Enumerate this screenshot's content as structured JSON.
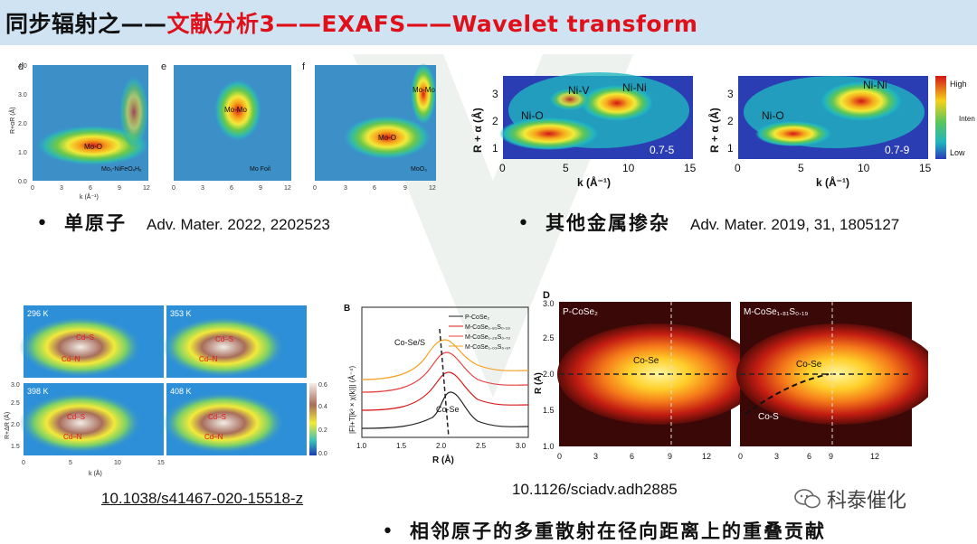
{
  "title": {
    "prefix": "同步辐射之——",
    "highlight": "文献分析3——EXAFS——Wavelet transform"
  },
  "panel_top_left": {
    "panels": [
      {
        "letter": "d",
        "label": "Mo-O",
        "note": "Mo₁-NiFeOₓHₓ"
      },
      {
        "letter": "e",
        "label": "Mo-Mo",
        "note": "Mo Foil"
      },
      {
        "letter": "f",
        "label_top": "Mo-Mo",
        "label_mid": "Mo-O",
        "note": "MoO₃"
      }
    ],
    "ylabel": "R+αR (Å)",
    "xlabel": "k (Å⁻¹)",
    "yticks": [
      "0.0",
      "1.0",
      "2.0",
      "3.0",
      "4.0"
    ],
    "xticks": [
      "0",
      "3",
      "6",
      "9",
      "12"
    ]
  },
  "panel_top_right": {
    "ylabel": "R + α (Å)",
    "xlabel": "k (Å⁻¹)",
    "xticks": [
      "0",
      "5",
      "10",
      "15"
    ],
    "yticks": [
      "1",
      "2",
      "3"
    ],
    "left": {
      "labels": [
        "Ni-V",
        "Ni-Ni",
        "Ni-O"
      ],
      "tag": "0.7-5"
    },
    "right": {
      "labels": [
        "Ni-Ni",
        "Ni-O"
      ],
      "tag": "0.7-9"
    },
    "colorbar": {
      "high": "High",
      "low": "Low",
      "title": "Intensity"
    }
  },
  "bullet_single_atom": {
    "text": "单原子",
    "cite": "Adv. Mater. 2022, 2202523"
  },
  "bullet_doping": {
    "text": "其他金属掺杂",
    "cite": "Adv. Mater. 2019, 31, 1805127"
  },
  "panel_bottom_left": {
    "temps": [
      "296 K",
      "353 K",
      "398 K",
      "408 K"
    ],
    "label_cds": "Cd–S",
    "label_cdn": "Cd–N",
    "ylabel": "R+ΔR (Å)",
    "xlabel": "k (Å)",
    "yticks": [
      "1.5",
      "2.0",
      "2.5",
      "3.0"
    ],
    "xticks": [
      "0",
      "5",
      "10",
      "15"
    ],
    "cbar_ticks": [
      "0.0",
      "0.2",
      "0.4",
      "0.6"
    ]
  },
  "panel_bottom_mid": {
    "letter": "B",
    "legend": [
      "P-CoSe₂",
      "M-CoSe₁.₈₁S₀.₁₉",
      "M-CoSe₁.₂₈S₀.₇₂",
      "M-CoSe₁.₀₃S₀.₉₇"
    ],
    "label_top": "Co-Se/S",
    "label_low": "Co-Se",
    "ylabel": "|FI+T[k³ × χ(k)]| (Å⁻⁴)",
    "xlabel": "R (Å)",
    "xticks": [
      "1.0",
      "1.5",
      "2.0",
      "2.5",
      "3.0"
    ]
  },
  "panel_bottom_right": {
    "letter": "D",
    "left_title": "P-CoSe₂",
    "right_title": "M-CoSe₁.₈₁S₀.₁₉",
    "label_cose": "Co-Se",
    "label_cos": "Co-S",
    "ylabel": "R (Å)",
    "yticks": [
      "1.0",
      "1.5",
      "2.0",
      "2.5",
      "3.0"
    ],
    "xticks_left": [
      "0",
      "3",
      "6",
      "9",
      "12"
    ],
    "xticks_right": [
      "0",
      "3",
      "6",
      "9",
      "12"
    ]
  },
  "doi_left": "10.1038/s41467-020-15518-z",
  "doi_right": "10.1126/sciadv.adh2885",
  "bullet_scatter": {
    "text": "相邻原子的多重散射在径向距离上的重叠贡献"
  },
  "brand": "科泰催化",
  "colors": {
    "title_bg": "#cfe3f2",
    "accent_red": "#e0101a"
  }
}
